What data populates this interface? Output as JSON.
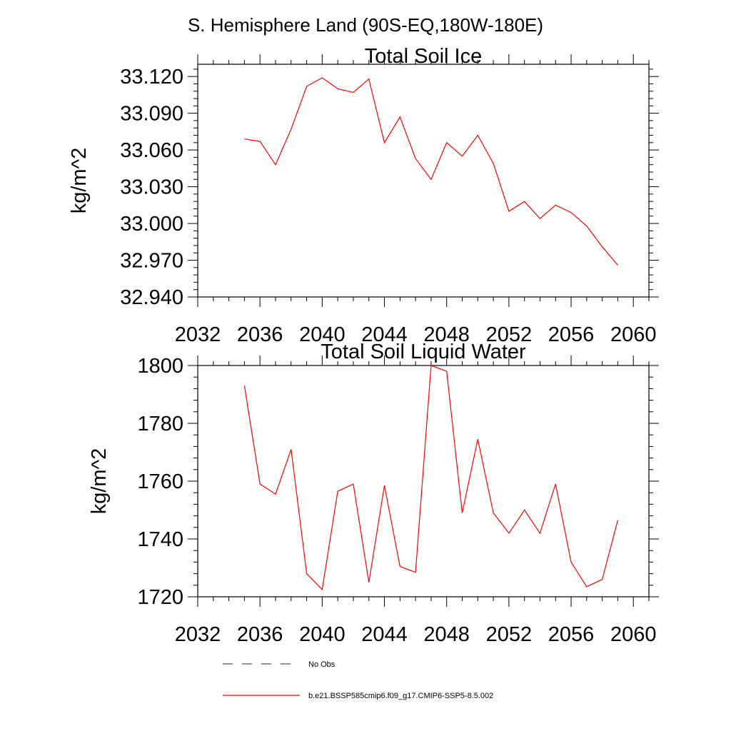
{
  "page_title": "S. Hemisphere Land (90S-EQ,180W-180E)",
  "legend": {
    "entries": [
      {
        "label": "No Obs",
        "style": "dashed",
        "color": "#1a2a55"
      },
      {
        "label": "b.e21.BSSP585cmip6.f09_g17.CMIP6-SSP5-8.5.002",
        "style": "solid",
        "color": "#ff0000"
      }
    ]
  },
  "chart_data": [
    {
      "type": "line",
      "title": "Total Soil Ice",
      "xlabel": "",
      "ylabel": "kg/m^2",
      "xlim": [
        2032,
        2061
      ],
      "ylim": [
        32.94,
        33.13
      ],
      "xticks": [
        2032,
        2036,
        2040,
        2044,
        2048,
        2052,
        2056,
        2060
      ],
      "xtick_labels": [
        "2032",
        "2036",
        "2040",
        "2044",
        "2048",
        "2052",
        "2056",
        "2060"
      ],
      "yticks": [
        32.94,
        32.97,
        33.0,
        33.03,
        33.06,
        33.09,
        33.12
      ],
      "ytick_labels": [
        "32.940",
        "32.970",
        "33.000",
        "33.030",
        "33.060",
        "33.090",
        "33.120"
      ],
      "grid": false,
      "series": [
        {
          "name": "b.e21.BSSP585cmip6.f09_g17.CMIP6-SSP5-8.5.002",
          "color": "#ff0000",
          "x": [
            2035,
            2036,
            2037,
            2038,
            2039,
            2040,
            2041,
            2042,
            2043,
            2044,
            2045,
            2046,
            2047,
            2048,
            2049,
            2050,
            2051,
            2052,
            2053,
            2054,
            2055,
            2056,
            2057,
            2058,
            2059
          ],
          "y": [
            33.069,
            33.067,
            33.048,
            33.077,
            33.112,
            33.119,
            33.11,
            33.107,
            33.118,
            33.066,
            33.087,
            33.053,
            33.036,
            33.066,
            33.055,
            33.072,
            33.049,
            33.01,
            33.018,
            33.004,
            33.015,
            33.009,
            32.998,
            32.981,
            32.966
          ]
        }
      ]
    },
    {
      "type": "line",
      "title": "Total Soil Liquid Water",
      "xlabel": "",
      "ylabel": "kg/m^2",
      "xlim": [
        2032,
        2061
      ],
      "ylim": [
        1720,
        1800
      ],
      "xticks": [
        2032,
        2036,
        2040,
        2044,
        2048,
        2052,
        2056,
        2060
      ],
      "xtick_labels": [
        "2032",
        "2036",
        "2040",
        "2044",
        "2048",
        "2052",
        "2056",
        "2060"
      ],
      "yticks": [
        1720,
        1740,
        1760,
        1780,
        1800
      ],
      "ytick_labels": [
        "1720",
        "1740",
        "1760",
        "1780",
        "1800"
      ],
      "grid": false,
      "series": [
        {
          "name": "b.e21.BSSP585cmip6.f09_g17.CMIP6-SSP5-8.5.002",
          "color": "#ff0000",
          "x": [
            2035,
            2036,
            2037,
            2038,
            2039,
            2040,
            2041,
            2042,
            2043,
            2044,
            2045,
            2046,
            2047,
            2048,
            2049,
            2050,
            2051,
            2052,
            2053,
            2054,
            2055,
            2056,
            2057,
            2058,
            2059
          ],
          "y": [
            1793,
            1759,
            1755.5,
            1771,
            1728,
            1722.5,
            1756.5,
            1759,
            1725,
            1758.5,
            1730.5,
            1728.5,
            1800,
            1798,
            1749,
            1774.5,
            1749,
            1742,
            1750,
            1742,
            1759,
            1732,
            1723.5,
            1726,
            1746.5
          ]
        }
      ]
    }
  ]
}
